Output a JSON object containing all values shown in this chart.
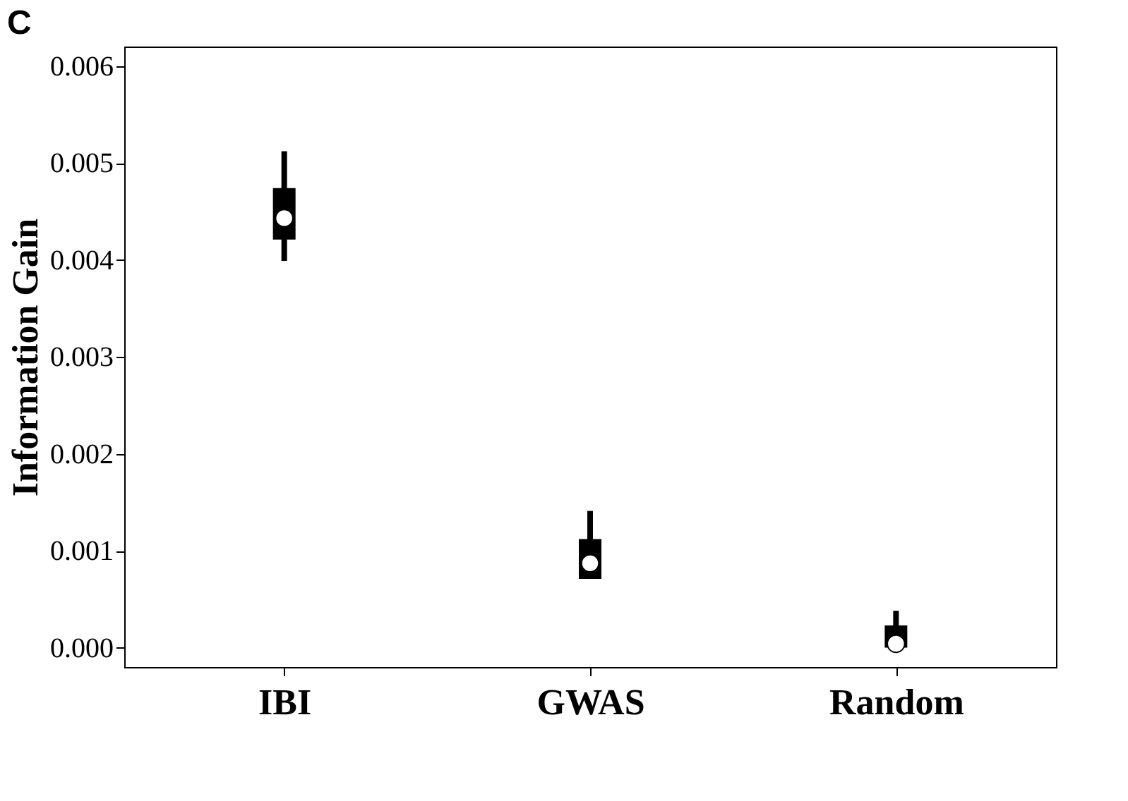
{
  "chart_data": {
    "type": "box",
    "title": "C",
    "ylabel": "Information Gain",
    "categories": [
      "IBI",
      "GWAS",
      "Random"
    ],
    "boxes": [
      {
        "low": 0.00399,
        "q1": 0.00421,
        "median": 0.00443,
        "q3": 0.00474,
        "high": 0.00512
      },
      {
        "low": 0.00071,
        "q1": 0.00071,
        "median": 0.00087,
        "q3": 0.00112,
        "high": 0.00141
      },
      {
        "low": 0.0,
        "q1": 0.0,
        "median": 4e-05,
        "q3": 0.00023,
        "high": 0.00038
      }
    ],
    "ylim": [
      -0.0002,
      0.0062
    ],
    "yticks": [
      {
        "value": 0,
        "label": "0.000"
      },
      {
        "value": 0.001,
        "label": "0.001"
      },
      {
        "value": 0.002,
        "label": "0.002"
      },
      {
        "value": 0.003,
        "label": "0.003"
      },
      {
        "value": 0.004,
        "label": "0.004"
      },
      {
        "value": 0.005,
        "label": "0.005"
      },
      {
        "value": 0.006,
        "label": "0.006"
      }
    ],
    "grid": false
  }
}
